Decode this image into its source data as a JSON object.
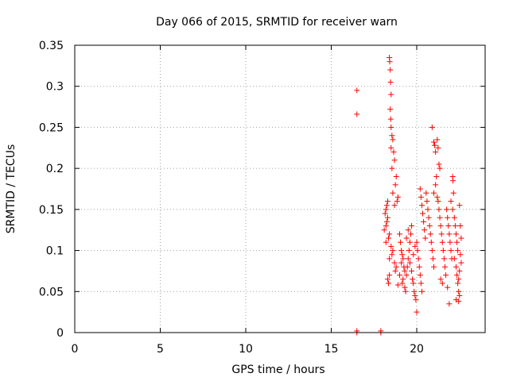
{
  "chart_data": {
    "type": "scatter",
    "title": "Day 066 of 2015, SRMTID for receiver warn",
    "xlabel": "GPS time / hours",
    "ylabel": "SRMTID / TECUs",
    "xlim": [
      0,
      24
    ],
    "ylim": [
      0,
      0.35
    ],
    "xticks": [
      0,
      5,
      10,
      15,
      20
    ],
    "xtick_labels": [
      "0",
      "5",
      "10",
      "15",
      "20"
    ],
    "yticks": [
      0,
      0.05,
      0.1,
      0.15,
      0.2,
      0.25,
      0.3,
      0.35
    ],
    "ytick_labels": [
      "0",
      "0.05",
      "0.1",
      "0.15",
      "0.2",
      "0.25",
      "0.3",
      "0.35"
    ],
    "grid": true,
    "marker": "+",
    "color": "#ff0000",
    "series": [
      {
        "name": "SRMTID",
        "points": [
          [
            16.5,
            0.295
          ],
          [
            16.5,
            0.266
          ],
          [
            16.5,
            0.002
          ],
          [
            16.5,
            0.0
          ],
          [
            17.9,
            0.002
          ],
          [
            17.9,
            0.0
          ],
          [
            18.4,
            0.335
          ],
          [
            18.42,
            0.33
          ],
          [
            18.45,
            0.32
          ],
          [
            18.47,
            0.305
          ],
          [
            18.5,
            0.29
          ],
          [
            18.45,
            0.272
          ],
          [
            18.48,
            0.26
          ],
          [
            18.5,
            0.25
          ],
          [
            18.55,
            0.24
          ],
          [
            18.6,
            0.235
          ],
          [
            18.5,
            0.225
          ],
          [
            18.65,
            0.22
          ],
          [
            18.7,
            0.21
          ],
          [
            18.55,
            0.2
          ],
          [
            18.8,
            0.19
          ],
          [
            18.75,
            0.18
          ],
          [
            18.6,
            0.17
          ],
          [
            18.9,
            0.165
          ],
          [
            18.85,
            0.16
          ],
          [
            18.7,
            0.155
          ],
          [
            18.3,
            0.16
          ],
          [
            18.25,
            0.155
          ],
          [
            18.2,
            0.15
          ],
          [
            18.15,
            0.145
          ],
          [
            18.3,
            0.14
          ],
          [
            18.25,
            0.135
          ],
          [
            18.2,
            0.13
          ],
          [
            18.1,
            0.125
          ],
          [
            18.4,
            0.12
          ],
          [
            18.35,
            0.115
          ],
          [
            18.2,
            0.11
          ],
          [
            18.5,
            0.105
          ],
          [
            18.6,
            0.1
          ],
          [
            18.55,
            0.095
          ],
          [
            18.4,
            0.09
          ],
          [
            18.7,
            0.085
          ],
          [
            18.8,
            0.08
          ],
          [
            18.75,
            0.075
          ],
          [
            18.4,
            0.07
          ],
          [
            18.3,
            0.065
          ],
          [
            18.35,
            0.06
          ],
          [
            18.9,
            0.058
          ],
          [
            19.0,
            0.12
          ],
          [
            19.05,
            0.11
          ],
          [
            19.1,
            0.1
          ],
          [
            19.15,
            0.095
          ],
          [
            19.2,
            0.09
          ],
          [
            19.1,
            0.085
          ],
          [
            19.25,
            0.08
          ],
          [
            19.3,
            0.075
          ],
          [
            19.0,
            0.07
          ],
          [
            19.2,
            0.065
          ],
          [
            19.15,
            0.06
          ],
          [
            19.3,
            0.055
          ],
          [
            19.35,
            0.05
          ],
          [
            19.4,
            0.07
          ],
          [
            19.45,
            0.08
          ],
          [
            19.5,
            0.09
          ],
          [
            19.55,
            0.1
          ],
          [
            19.6,
            0.11
          ],
          [
            19.65,
            0.12
          ],
          [
            19.7,
            0.13
          ],
          [
            19.5,
            0.125
          ],
          [
            19.4,
            0.115
          ],
          [
            19.6,
            0.085
          ],
          [
            19.7,
            0.075
          ],
          [
            19.75,
            0.065
          ],
          [
            19.8,
            0.06
          ],
          [
            19.85,
            0.05
          ],
          [
            19.9,
            0.045
          ],
          [
            19.95,
            0.04
          ],
          [
            20.0,
            0.025
          ],
          [
            19.8,
            0.095
          ],
          [
            19.9,
            0.105
          ],
          [
            20.0,
            0.11
          ],
          [
            20.05,
            0.1
          ],
          [
            20.1,
            0.09
          ],
          [
            20.15,
            0.08
          ],
          [
            20.2,
            0.07
          ],
          [
            20.25,
            0.06
          ],
          [
            20.3,
            0.05
          ],
          [
            20.2,
            0.175
          ],
          [
            20.25,
            0.165
          ],
          [
            20.3,
            0.155
          ],
          [
            20.35,
            0.145
          ],
          [
            20.4,
            0.135
          ],
          [
            20.45,
            0.125
          ],
          [
            20.5,
            0.115
          ],
          [
            20.55,
            0.17
          ],
          [
            20.6,
            0.16
          ],
          [
            20.65,
            0.15
          ],
          [
            20.7,
            0.14
          ],
          [
            20.75,
            0.13
          ],
          [
            20.8,
            0.12
          ],
          [
            20.85,
            0.11
          ],
          [
            20.9,
            0.1
          ],
          [
            20.95,
            0.09
          ],
          [
            21.0,
            0.08
          ],
          [
            20.9,
            0.25
          ],
          [
            21.0,
            0.232
          ],
          [
            21.05,
            0.228
          ],
          [
            21.1,
            0.22
          ],
          [
            21.2,
            0.235
          ],
          [
            21.25,
            0.225
          ],
          [
            21.3,
            0.205
          ],
          [
            21.35,
            0.2
          ],
          [
            21.15,
            0.19
          ],
          [
            21.1,
            0.18
          ],
          [
            21.0,
            0.17
          ],
          [
            21.2,
            0.165
          ],
          [
            21.25,
            0.16
          ],
          [
            21.3,
            0.15
          ],
          [
            21.35,
            0.14
          ],
          [
            21.4,
            0.13
          ],
          [
            21.45,
            0.12
          ],
          [
            21.5,
            0.11
          ],
          [
            21.55,
            0.1
          ],
          [
            21.6,
            0.09
          ],
          [
            21.65,
            0.08
          ],
          [
            21.7,
            0.07
          ],
          [
            21.4,
            0.065
          ],
          [
            21.5,
            0.06
          ],
          [
            21.8,
            0.055
          ],
          [
            21.9,
            0.035
          ],
          [
            21.75,
            0.15
          ],
          [
            21.8,
            0.14
          ],
          [
            21.85,
            0.13
          ],
          [
            21.9,
            0.12
          ],
          [
            21.95,
            0.11
          ],
          [
            22.0,
            0.1
          ],
          [
            22.05,
            0.09
          ],
          [
            22.1,
            0.19
          ],
          [
            22.12,
            0.185
          ],
          [
            22.15,
            0.17
          ],
          [
            22.0,
            0.16
          ],
          [
            22.1,
            0.15
          ],
          [
            22.2,
            0.14
          ],
          [
            22.25,
            0.13
          ],
          [
            22.3,
            0.12
          ],
          [
            22.35,
            0.11
          ],
          [
            22.4,
            0.1
          ],
          [
            22.2,
            0.09
          ],
          [
            22.3,
            0.08
          ],
          [
            22.35,
            0.07
          ],
          [
            22.4,
            0.06
          ],
          [
            22.45,
            0.05
          ],
          [
            22.5,
            0.045
          ],
          [
            22.3,
            0.04
          ],
          [
            22.45,
            0.038
          ],
          [
            22.5,
            0.155
          ],
          [
            22.55,
            0.13
          ],
          [
            22.6,
            0.115
          ],
          [
            22.6,
            0.085
          ],
          [
            22.55,
            0.095
          ],
          [
            22.5,
            0.075
          ],
          [
            22.45,
            0.065
          ]
        ]
      }
    ]
  }
}
